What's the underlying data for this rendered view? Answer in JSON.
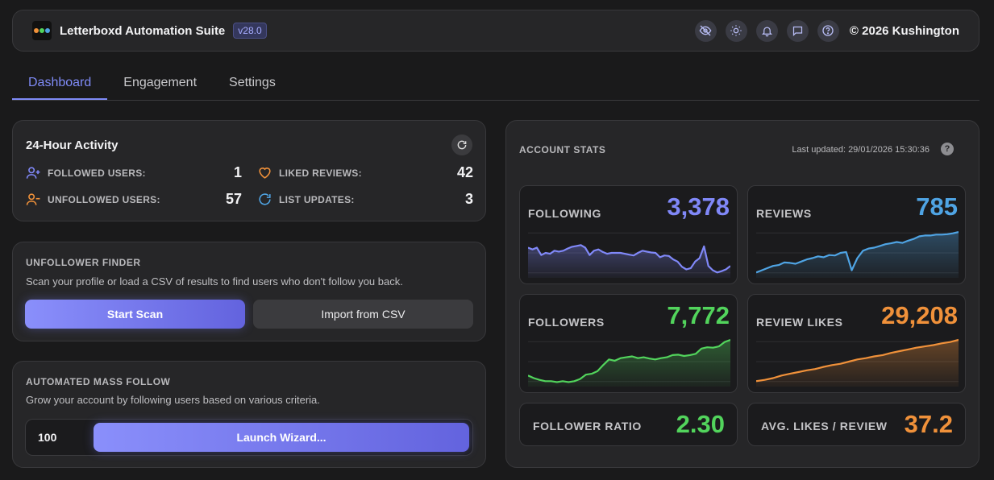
{
  "header": {
    "title": "Letterboxd Automation Suite",
    "version": "v28.0",
    "copyright": "© 2026 Kushington",
    "icons": [
      "eye-off-icon",
      "sun-icon",
      "bell-icon",
      "chat-icon",
      "help-circle-icon"
    ]
  },
  "tabs": [
    {
      "label": "Dashboard",
      "active": true
    },
    {
      "label": "Engagement",
      "active": false
    },
    {
      "label": "Settings",
      "active": false
    }
  ],
  "activity": {
    "title": "24-Hour Activity",
    "items": [
      {
        "label": "FOLLOWED USERS:",
        "value": "1",
        "icon": "user-plus-icon"
      },
      {
        "label": "LIKED REVIEWS:",
        "value": "42",
        "icon": "heart-icon"
      },
      {
        "label": "UNFOLLOWED USERS:",
        "value": "57",
        "icon": "user-minus-icon"
      },
      {
        "label": "LIST UPDATES:",
        "value": "3",
        "icon": "refresh-icon"
      }
    ]
  },
  "unfollower": {
    "title": "UNFOLLOWER FINDER",
    "description": "Scan your profile or load a CSV of results to find users who don't follow you back.",
    "start_label": "Start Scan",
    "import_label": "Import from CSV"
  },
  "mass_follow": {
    "title": "AUTOMATED MASS FOLLOW",
    "description": "Grow your account by following users based on various criteria.",
    "count_value": "100",
    "launch_label": "Launch Wizard..."
  },
  "stats": {
    "title": "ACCOUNT STATS",
    "last_updated": "Last updated: 29/01/2026 15:30:36",
    "help": "?",
    "cards": [
      {
        "label": "FOLLOWING",
        "value": "3,378",
        "color": "#8088f8",
        "trend": [
          0.62,
          0.58,
          0.62,
          0.45,
          0.5,
          0.48,
          0.55,
          0.53,
          0.55,
          0.6,
          0.64,
          0.66,
          0.68,
          0.62,
          0.45,
          0.55,
          0.58,
          0.52,
          0.48,
          0.5,
          0.5,
          0.5,
          0.48,
          0.46,
          0.44,
          0.5,
          0.55,
          0.53,
          0.51,
          0.5,
          0.4,
          0.44,
          0.43,
          0.35,
          0.3,
          0.18,
          0.12,
          0.15,
          0.3,
          0.38,
          0.65,
          0.2,
          0.1,
          0.05,
          0.08,
          0.12,
          0.2
        ]
      },
      {
        "label": "REVIEWS",
        "value": "785",
        "color": "#4fa4e4",
        "trend": [
          0.05,
          0.1,
          0.15,
          0.2,
          0.22,
          0.28,
          0.27,
          0.25,
          0.3,
          0.35,
          0.38,
          0.42,
          0.4,
          0.45,
          0.44,
          0.5,
          0.52,
          0.1,
          0.38,
          0.55,
          0.6,
          0.62,
          0.66,
          0.7,
          0.72,
          0.75,
          0.73,
          0.78,
          0.82,
          0.88,
          0.9,
          0.9,
          0.92,
          0.92,
          0.93,
          0.95,
          0.98
        ]
      },
      {
        "label": "FOLLOWERS",
        "value": "7,772",
        "color": "#52d45c",
        "trend": [
          0.18,
          0.12,
          0.08,
          0.05,
          0.05,
          0.03,
          0.05,
          0.03,
          0.05,
          0.1,
          0.2,
          0.22,
          0.28,
          0.42,
          0.55,
          0.52,
          0.58,
          0.6,
          0.62,
          0.58,
          0.6,
          0.57,
          0.55,
          0.58,
          0.6,
          0.65,
          0.66,
          0.63,
          0.65,
          0.68,
          0.8,
          0.83,
          0.82,
          0.85,
          0.95,
          1.0
        ]
      },
      {
        "label": "REVIEW LIKES",
        "value": "29,208",
        "color": "#f0913a",
        "trend": [
          0.05,
          0.08,
          0.12,
          0.18,
          0.22,
          0.26,
          0.3,
          0.33,
          0.38,
          0.42,
          0.45,
          0.5,
          0.55,
          0.58,
          0.62,
          0.65,
          0.7,
          0.74,
          0.78,
          0.82,
          0.85,
          0.88,
          0.92,
          0.95,
          1.0
        ]
      },
      {
        "label": "FOLLOWER RATIO",
        "value": "2.30",
        "color": "#52d45c"
      },
      {
        "label": "AVG. LIKES / REVIEW",
        "value": "37.2",
        "color": "#f0913a"
      }
    ]
  }
}
